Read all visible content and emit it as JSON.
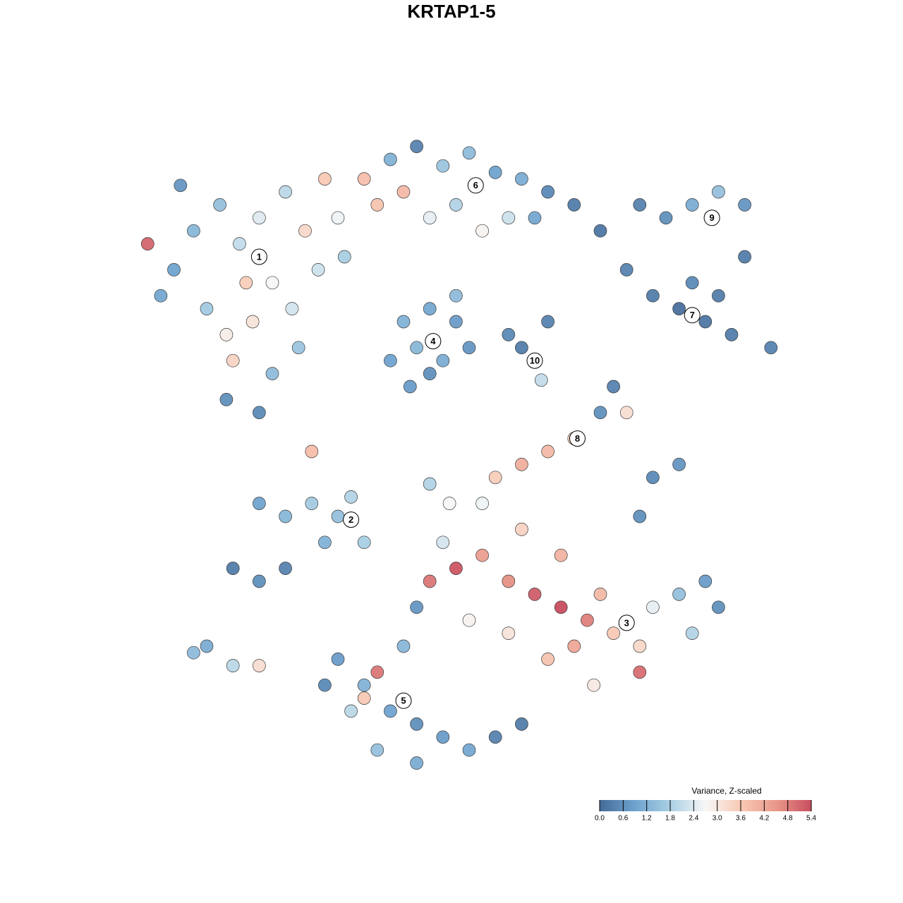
{
  "chart_data": {
    "type": "scatter",
    "title": "KRTAP1-5",
    "colorbar_title": "Variance, Z-scaled",
    "xlim": [
      0,
      100
    ],
    "ylim": [
      0,
      100
    ],
    "clim": [
      0,
      5.4
    ],
    "cticks": [
      {
        "value": 0,
        "label": "0.0"
      },
      0.6,
      1.2,
      1.8,
      2.4,
      {
        "value": 3,
        "label": "3.0"
      },
      3.6,
      4.2,
      4.8,
      5.4
    ],
    "colormap": [
      "#436a97",
      "#6fa3cf",
      "#a9cfe3",
      "#f7f7f7",
      "#f8c9b4",
      "#e9988a",
      "#c84d5f"
    ],
    "x": [
      5,
      8,
      12,
      15,
      18,
      20,
      22,
      25,
      10,
      13,
      17,
      14,
      20,
      24,
      13,
      18,
      27,
      30,
      28,
      3,
      6,
      1,
      31,
      34,
      36,
      23,
      16,
      38,
      42,
      46,
      50,
      54,
      58,
      62,
      66,
      48,
      44,
      40,
      56,
      60,
      52,
      40,
      44,
      48,
      42,
      46,
      50,
      38,
      44,
      48,
      41,
      58,
      60,
      61,
      56,
      62,
      70,
      74,
      78,
      82,
      86,
      90,
      96,
      88,
      84,
      80,
      84,
      88,
      92,
      92,
      76,
      84,
      66,
      62,
      58,
      54,
      70,
      72,
      78,
      82,
      76,
      74,
      26,
      47,
      44,
      18,
      22,
      26,
      30,
      32,
      14,
      18,
      22,
      28,
      34,
      10,
      14,
      18,
      8,
      44,
      48,
      52,
      56,
      60,
      64,
      68,
      70,
      66,
      72,
      76,
      78,
      82,
      86,
      88,
      84,
      62,
      56,
      50,
      46,
      42,
      52,
      58,
      64,
      69,
      76,
      30,
      34,
      38,
      42,
      46,
      50,
      54,
      58,
      36,
      42,
      32,
      36,
      34,
      40,
      28
    ],
    "y": [
      78,
      84,
      88,
      82,
      86,
      76,
      90,
      84,
      72,
      68,
      70,
      64,
      62,
      66,
      58,
      56,
      78,
      86,
      92,
      74,
      91,
      82,
      80,
      92,
      88,
      72,
      76,
      95,
      97,
      94,
      96,
      93,
      92,
      90,
      88,
      88,
      86,
      90,
      86,
      86,
      84,
      70,
      72,
      70,
      66,
      64,
      66,
      64,
      62,
      74,
      60,
      66,
      64,
      61,
      68,
      70,
      84,
      78,
      74,
      72,
      70,
      68,
      66,
      74,
      76,
      86,
      88,
      90,
      88,
      80,
      88,
      71,
      52,
      50,
      48,
      46,
      56,
      60,
      46,
      48,
      40,
      56,
      50,
      42,
      45,
      42,
      40,
      42,
      40,
      43,
      32,
      30,
      32,
      36,
      36,
      20,
      17,
      17,
      19,
      30,
      32,
      34,
      30,
      28,
      26,
      24,
      28,
      20,
      22,
      20,
      26,
      28,
      30,
      26,
      22,
      18,
      22,
      24,
      36,
      26,
      42,
      38,
      34,
      14,
      16,
      18,
      14,
      10,
      8,
      6,
      4,
      6,
      8,
      4,
      2,
      10,
      16,
      12,
      20,
      14
    ],
    "values": [
      0.9,
      1.3,
      1.5,
      2.1,
      2.4,
      2.7,
      2.0,
      3.3,
      1.7,
      2.9,
      3.1,
      3.4,
      1.4,
      1.6,
      0.6,
      0.5,
      2.2,
      2.6,
      3.6,
      1.0,
      0.7,
      5.1,
      1.8,
      3.8,
      3.7,
      2.3,
      3.5,
      1.2,
      0.4,
      1.6,
      1.4,
      0.9,
      1.1,
      0.5,
      0.3,
      1.9,
      2.5,
      3.9,
      2.2,
      1.0,
      2.8,
      1.2,
      1.0,
      0.8,
      1.3,
      1.1,
      0.7,
      0.9,
      0.6,
      1.4,
      0.8,
      0.3,
      2.6,
      2.1,
      0.5,
      0.4,
      0.2,
      0.4,
      0.3,
      0.1,
      0.2,
      0.3,
      0.4,
      0.3,
      0.5,
      0.6,
      1.1,
      1.5,
      0.7,
      0.3,
      0.4,
      2.4,
      3.4,
      3.9,
      4.1,
      3.5,
      0.6,
      0.4,
      0.5,
      0.7,
      0.6,
      3.2,
      3.8,
      2.7,
      1.9,
      0.9,
      1.3,
      1.7,
      1.5,
      1.9,
      0.3,
      0.6,
      0.4,
      1.2,
      1.8,
      1.1,
      2.0,
      3.2,
      1.4,
      4.9,
      5.3,
      4.4,
      4.6,
      5.2,
      5.4,
      4.8,
      3.9,
      4.2,
      3.6,
      3.3,
      2.5,
      1.5,
      0.8,
      0.6,
      1.9,
      3.7,
      3.1,
      2.8,
      2.3,
      0.7,
      2.6,
      3.4,
      4.0,
      3.0,
      5.0,
      0.8,
      1.2,
      0.9,
      0.6,
      0.8,
      1.0,
      0.4,
      0.3,
      1.5,
      1.1,
      2.0,
      4.9,
      3.6,
      1.3,
      0.5
    ],
    "cluster_labels": [
      {
        "text": "1",
        "x": 18,
        "y": 80
      },
      {
        "text": "2",
        "x": 32,
        "y": 39.5
      },
      {
        "text": "3",
        "x": 74,
        "y": 23.6
      },
      {
        "text": "4",
        "x": 44.5,
        "y": 67
      },
      {
        "text": "5",
        "x": 40,
        "y": 11.6
      },
      {
        "text": "6",
        "x": 51,
        "y": 91
      },
      {
        "text": "7",
        "x": 84,
        "y": 71
      },
      {
        "text": "8",
        "x": 66.5,
        "y": 52
      },
      {
        "text": "9",
        "x": 87,
        "y": 86
      },
      {
        "text": "10",
        "x": 60,
        "y": 64
      }
    ]
  }
}
